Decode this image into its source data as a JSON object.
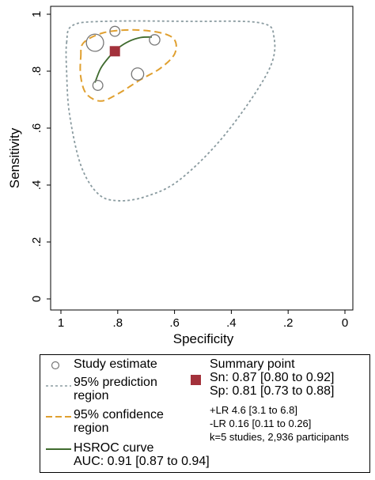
{
  "chart_data": {
    "type": "scatter",
    "xlabel": "Specificity",
    "ylabel": "Sensitivity",
    "x_axis_reversed": true,
    "xlim": [
      1,
      0
    ],
    "ylim": [
      0,
      1
    ],
    "x_ticks": [
      1,
      0.8,
      0.6,
      0.4,
      0.2,
      0
    ],
    "x_tick_labels": [
      "1",
      ".8",
      ".6",
      ".4",
      ".2",
      "0"
    ],
    "y_ticks": [
      0,
      0.2,
      0.4,
      0.6,
      0.8,
      1
    ],
    "y_tick_labels": [
      "0",
      ".2",
      ".4",
      ".6",
      ".8",
      "1"
    ],
    "grid": false,
    "legend_position": "bottom",
    "studies": [
      {
        "specificity": 0.88,
        "sensitivity": 0.9,
        "weight": 3.0
      },
      {
        "specificity": 0.81,
        "sensitivity": 0.94,
        "weight": 1.0
      },
      {
        "specificity": 0.67,
        "sensitivity": 0.91,
        "weight": 1.1
      },
      {
        "specificity": 0.73,
        "sensitivity": 0.79,
        "weight": 1.5
      },
      {
        "specificity": 0.87,
        "sensitivity": 0.75,
        "weight": 1.0
      }
    ],
    "summary_point": {
      "specificity": 0.81,
      "sensitivity": 0.87,
      "color": "#a3313b"
    },
    "hsroc_curve": [
      {
        "specificity": 0.88,
        "sensitivity": 0.76
      },
      {
        "specificity": 0.86,
        "sensitivity": 0.81
      },
      {
        "specificity": 0.83,
        "sensitivity": 0.85
      },
      {
        "specificity": 0.8,
        "sensitivity": 0.88
      },
      {
        "specificity": 0.76,
        "sensitivity": 0.905
      },
      {
        "specificity": 0.72,
        "sensitivity": 0.918
      },
      {
        "specificity": 0.68,
        "sensitivity": 0.92
      }
    ],
    "confidence_region": [
      {
        "specificity": 0.93,
        "sensitivity": 0.85
      },
      {
        "specificity": 0.92,
        "sensitivity": 0.9
      },
      {
        "specificity": 0.85,
        "sensitivity": 0.935
      },
      {
        "specificity": 0.75,
        "sensitivity": 0.945
      },
      {
        "specificity": 0.65,
        "sensitivity": 0.935
      },
      {
        "specificity": 0.6,
        "sensitivity": 0.91
      },
      {
        "specificity": 0.6,
        "sensitivity": 0.86
      },
      {
        "specificity": 0.65,
        "sensitivity": 0.81
      },
      {
        "specificity": 0.72,
        "sensitivity": 0.77
      },
      {
        "specificity": 0.8,
        "sensitivity": 0.72
      },
      {
        "specificity": 0.86,
        "sensitivity": 0.695
      },
      {
        "specificity": 0.91,
        "sensitivity": 0.72
      },
      {
        "specificity": 0.93,
        "sensitivity": 0.78
      }
    ],
    "prediction_region": [
      {
        "specificity": 0.98,
        "sensitivity": 0.9
      },
      {
        "specificity": 0.96,
        "sensitivity": 0.96
      },
      {
        "specificity": 0.85,
        "sensitivity": 0.975
      },
      {
        "specificity": 0.55,
        "sensitivity": 0.975
      },
      {
        "specificity": 0.3,
        "sensitivity": 0.97
      },
      {
        "specificity": 0.25,
        "sensitivity": 0.92
      },
      {
        "specificity": 0.27,
        "sensitivity": 0.8
      },
      {
        "specificity": 0.42,
        "sensitivity": 0.58
      },
      {
        "specificity": 0.58,
        "sensitivity": 0.42
      },
      {
        "specificity": 0.7,
        "sensitivity": 0.36
      },
      {
        "specificity": 0.8,
        "sensitivity": 0.345
      },
      {
        "specificity": 0.87,
        "sensitivity": 0.37
      },
      {
        "specificity": 0.93,
        "sensitivity": 0.47
      },
      {
        "specificity": 0.97,
        "sensitivity": 0.65
      },
      {
        "specificity": 0.98,
        "sensitivity": 0.8
      }
    ],
    "colors": {
      "study": "#777777",
      "summary": "#a3313b",
      "confidence": "#e0a030",
      "prediction": "#8a9ba0",
      "hsroc": "#3f6b2e"
    }
  },
  "legend": {
    "study_estimate": "Study estimate",
    "prediction_line1": "95% prediction",
    "prediction_line2": "region",
    "confidence_line1": "95% confidence",
    "confidence_line2": "region",
    "hsroc_line1": "HSROC curve",
    "hsroc_line2": "AUC: 0.91 [0.87 to 0.94]",
    "summary_title": "Summary point",
    "sn": "Sn: 0.87 [0.80 to 0.92]",
    "sp": "Sp: 0.81 [0.73 to 0.88]",
    "plr": "+LR 4.6 [3.1 to 6.8]",
    "nlr": "-LR 0.16 [0.11 to 0.26]",
    "k": "k=5 studies, 2,936 participants"
  }
}
